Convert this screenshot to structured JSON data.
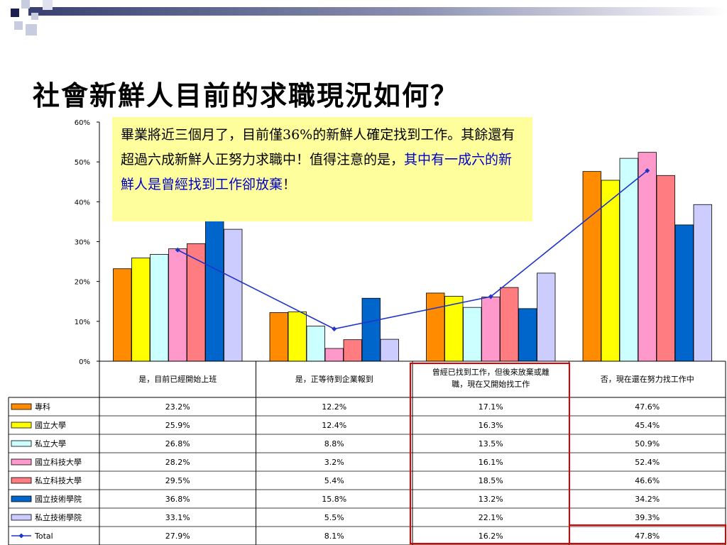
{
  "slide": {
    "title": "社會新鮮人目前的求職現況如何？"
  },
  "note": {
    "text_plain": "畢業將近三個月了，目前僅36%的新鮮人確定找到工作。其餘還有超過六成新鮮人正努力求職中！值得注意的是，",
    "text_highlight": "其中有一成六的新鮮人是曾經找到工作卻放棄",
    "text_end": "！",
    "highlight_color": "#0000cc",
    "background": "#fffe9c"
  },
  "colors": {
    "highlight_border": "#e00000",
    "total_line": "#1f35c9"
  },
  "chart_data": {
    "type": "bar",
    "ylim": [
      0,
      60
    ],
    "yticks": [
      "0%",
      "10%",
      "20%",
      "30%",
      "40%",
      "50%",
      "60%"
    ],
    "categories": [
      "是，目前已經開始上班",
      "是，正等待到企業報到",
      "曾經已找到工作，但後來放棄或離職，現在又開始找工作",
      "否，現在還在努力找工作中"
    ],
    "category_lines": [
      [
        "是，目前已經開始上班"
      ],
      [
        "是，正等待到企業報到"
      ],
      [
        "曾經已找到工作，但後來放棄或離",
        "職，現在又開始找工作"
      ],
      [
        "否，現在還在努力找工作中"
      ]
    ],
    "series": [
      {
        "name": "專科",
        "values": [
          23.2,
          12.2,
          17.1,
          47.6
        ],
        "labels": [
          "23.2%",
          "12.2%",
          "17.1%",
          "47.6%"
        ],
        "color": "#ff8c00"
      },
      {
        "name": "國立大學",
        "values": [
          25.9,
          12.4,
          16.3,
          45.4
        ],
        "labels": [
          "25.9%",
          "12.4%",
          "16.3%",
          "45.4%"
        ],
        "color": "#ffff00"
      },
      {
        "name": "私立大學",
        "values": [
          26.8,
          8.8,
          13.5,
          50.9
        ],
        "labels": [
          "26.8%",
          "8.8%",
          "13.5%",
          "50.9%"
        ],
        "color": "#ccffff"
      },
      {
        "name": "國立科技大學",
        "values": [
          28.2,
          3.2,
          16.1,
          52.4
        ],
        "labels": [
          "28.2%",
          "3.2%",
          "16.1%",
          "52.4%"
        ],
        "color": "#ff99cc"
      },
      {
        "name": "私立科技大學",
        "values": [
          29.5,
          5.4,
          18.5,
          46.6
        ],
        "labels": [
          "29.5%",
          "5.4%",
          "18.5%",
          "46.6%"
        ],
        "color": "#ff7c80"
      },
      {
        "name": "國立技術學院",
        "values": [
          36.8,
          15.8,
          13.2,
          34.2
        ],
        "labels": [
          "36.8%",
          "15.8%",
          "13.2%",
          "34.2%"
        ],
        "color": "#0066cc"
      },
      {
        "name": "私立技術學院",
        "values": [
          33.1,
          5.5,
          22.1,
          39.3
        ],
        "labels": [
          "33.1%",
          "5.5%",
          "22.1%",
          "39.3%"
        ],
        "color": "#ccccff"
      }
    ],
    "total": {
      "name": "Total",
      "values": [
        27.9,
        8.1,
        16.2,
        47.8
      ],
      "labels": [
        "27.9%",
        "8.1%",
        "16.2%",
        "47.8%"
      ],
      "color": "#1f35c9"
    }
  }
}
